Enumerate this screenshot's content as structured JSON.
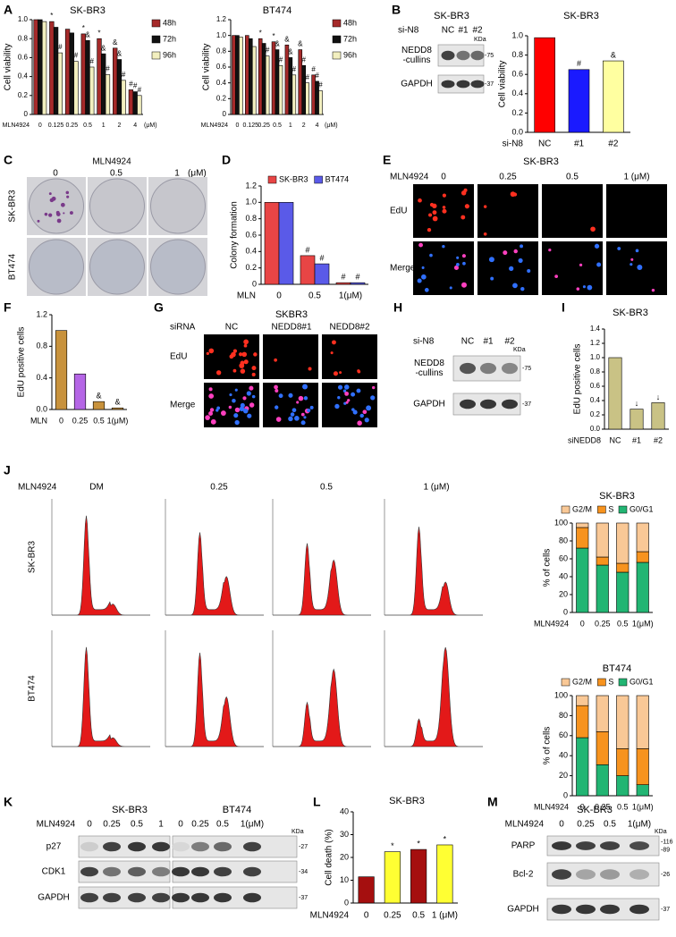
{
  "panel_labels": [
    "A",
    "B",
    "C",
    "D",
    "E",
    "F",
    "G",
    "H",
    "I",
    "J",
    "K",
    "L",
    "M"
  ],
  "chart_data": [
    {
      "type": "bar",
      "title": "SK-BR3",
      "ylabel": "Cell viability",
      "x_label": "MLN4924",
      "x_unit": "(μM)",
      "categories": [
        "0",
        "0.125",
        "0.25",
        "0.5",
        "1",
        "2",
        "4"
      ],
      "series": [
        {
          "name": "48h",
          "color": "#a52a2a",
          "values": [
            1.0,
            0.98,
            0.9,
            0.85,
            0.8,
            0.7,
            0.26
          ],
          "annotations": [
            null,
            "*",
            null,
            "*",
            "*",
            "&",
            "#"
          ]
        },
        {
          "name": "72h",
          "color": "#111111",
          "values": [
            1.0,
            0.92,
            0.86,
            0.78,
            0.64,
            0.58,
            0.24
          ],
          "annotations": [
            null,
            null,
            null,
            "&",
            "&",
            "&",
            "#"
          ]
        },
        {
          "name": "96h",
          "color": "#f2efbf",
          "values": [
            0.98,
            0.65,
            0.56,
            0.5,
            0.42,
            0.36,
            0.2
          ],
          "annotations": [
            null,
            "#",
            "#",
            "#",
            "#",
            "#",
            "#"
          ]
        }
      ],
      "ylim": [
        0,
        1.0
      ],
      "yticks": [
        0,
        0.2,
        0.4,
        0.6,
        0.8,
        {
          "value": 1,
          "label": "1.0"
        }
      ],
      "legend": "right"
    },
    {
      "type": "bar",
      "title": "BT474",
      "ylabel": "Cell viability",
      "x_label": "MLN4924",
      "x_unit": "(μM)",
      "categories": [
        "0",
        "0.125",
        "0.25",
        "0.5",
        "1",
        "2",
        "4"
      ],
      "series": [
        {
          "name": "48h",
          "color": "#a52a2a",
          "values": [
            1.0,
            1.0,
            0.96,
            0.92,
            0.88,
            0.82,
            0.5
          ],
          "annotations": [
            null,
            null,
            "*",
            "*",
            "&",
            "&",
            "#"
          ]
        },
        {
          "name": "72h",
          "color": "#111111",
          "values": [
            1.0,
            0.96,
            0.9,
            0.82,
            0.72,
            0.62,
            0.42
          ],
          "annotations": [
            null,
            null,
            null,
            "&",
            "&",
            "#",
            "#"
          ]
        },
        {
          "name": "96h",
          "color": "#f2efbf",
          "values": [
            0.98,
            0.86,
            0.74,
            0.62,
            0.5,
            0.4,
            0.3
          ],
          "annotations": [
            null,
            null,
            "#",
            "#",
            "#",
            "#",
            "#"
          ]
        }
      ],
      "ylim": [
        0,
        1.2
      ],
      "yticks": [
        0,
        0.2,
        0.4,
        0.6,
        0.8,
        {
          "value": 1,
          "label": "1.0"
        },
        1.2
      ],
      "legend": "right"
    },
    {
      "type": "bar",
      "title": "SK-BR3",
      "ylabel": "Cell viability",
      "x_label": "si-N8",
      "categories": [
        "NC",
        "#1",
        "#2"
      ],
      "values": [
        0.98,
        0.65,
        0.74
      ],
      "colors": [
        "#ff0000",
        "#1a1aff",
        "#ffffa0"
      ],
      "annotations": [
        null,
        "#",
        "&"
      ],
      "ylim": [
        0,
        1.0
      ],
      "yticks": [
        {
          "value": 0,
          "label": "0.0"
        },
        0.2,
        0.4,
        0.6,
        0.8,
        {
          "value": 1,
          "label": "1.0"
        }
      ]
    },
    {
      "type": "bar",
      "ylabel": "Colony formation",
      "x_label": "MLN",
      "categories": [
        "0",
        "0.5",
        "1(μM)"
      ],
      "series": [
        {
          "name": "SK-BR3",
          "color": "#e84545",
          "values": [
            1.0,
            0.35,
            0.02
          ],
          "annotations": [
            null,
            "#",
            "#"
          ]
        },
        {
          "name": "BT474",
          "color": "#5a5ae8",
          "values": [
            1.0,
            0.25,
            0.02
          ],
          "annotations": [
            null,
            "#",
            "#"
          ]
        }
      ],
      "ylim": [
        0,
        1.2
      ],
      "yticks": [
        0,
        0.2,
        0.4,
        0.6,
        0.8,
        {
          "value": 1,
          "label": "1.0"
        },
        1.2
      ],
      "legend": "top"
    },
    {
      "type": "bar",
      "ylabel": "EdU positive cells",
      "x_label": "MLN",
      "categories": [
        "0",
        "0.25",
        "0.5",
        "1(μM)"
      ],
      "values": [
        1.0,
        0.45,
        0.1,
        0.02
      ],
      "colors": [
        "#c8923c",
        "#b566e6",
        "#c8923c",
        "#c8923c"
      ],
      "annotations": [
        null,
        null,
        "&",
        "&"
      ],
      "ylim": [
        0,
        1.2
      ],
      "yticks": [
        {
          "value": 0,
          "label": "0.0"
        },
        0.4,
        0.8,
        1.2
      ]
    },
    {
      "type": "bar",
      "title": "SK-BR3",
      "ylabel": "EdU positive cells",
      "x_label": "siNEDD8",
      "categories": [
        "NC",
        "#1",
        "#2"
      ],
      "values": [
        1.0,
        0.28,
        0.37
      ],
      "color": "#c9c285",
      "annotations": [
        null,
        "↓",
        "↓"
      ],
      "ylim": [
        0,
        1.4
      ],
      "yticks": [
        {
          "value": 0,
          "label": "0.0"
        },
        0.2,
        0.4,
        0.6,
        0.8,
        {
          "value": 1,
          "label": "1.0"
        },
        1.2,
        1.4
      ]
    },
    {
      "type": "bar",
      "stacked": true,
      "title": "SK-BR3",
      "ylabel": "% of cells",
      "x_label": "MLN4924",
      "categories": [
        "0",
        "0.25",
        "0.5",
        "1(μM)"
      ],
      "series": [
        {
          "name": "G2/M",
          "color": "#f9c896",
          "values": [
            5,
            38,
            45,
            32
          ]
        },
        {
          "name": "S",
          "color": "#f7931e",
          "values": [
            23,
            9,
            10,
            12
          ]
        },
        {
          "name": "G0/G1",
          "color": "#22b573",
          "values": [
            72,
            53,
            45,
            56
          ]
        }
      ],
      "ylim": [
        0,
        100
      ],
      "yticks": [
        0,
        20,
        40,
        60,
        80,
        100
      ],
      "legend": "top"
    },
    {
      "type": "bar",
      "stacked": true,
      "title": "BT474",
      "ylabel": "% of cells",
      "x_label": "MLN4924",
      "categories": [
        "0",
        "0.25",
        "0.5",
        "1(μM)"
      ],
      "series": [
        {
          "name": "G2/M",
          "color": "#f9c896",
          "values": [
            10,
            36,
            53,
            53
          ]
        },
        {
          "name": "S",
          "color": "#f7931e",
          "values": [
            32,
            33,
            27,
            36
          ]
        },
        {
          "name": "G0/G1",
          "color": "#22b573",
          "values": [
            58,
            31,
            20,
            11
          ]
        }
      ],
      "ylim": [
        0,
        100
      ],
      "yticks": [
        0,
        20,
        40,
        60,
        80,
        100
      ],
      "legend": "top"
    },
    {
      "type": "bar",
      "title": "SK-BR3",
      "ylabel": "Cell death (%)",
      "x_label": "MLN4924",
      "categories": [
        "0",
        "0.25",
        "0.5",
        "1 (μM)"
      ],
      "values": [
        11.5,
        22.5,
        23.5,
        25.5
      ],
      "colors": [
        "#a50f0f",
        "#ffff33",
        "#a50f0f",
        "#ffff33"
      ],
      "annotations": [
        null,
        "*",
        "*",
        "*"
      ],
      "ylim": [
        0,
        40
      ],
      "yticks": [
        0,
        10,
        20,
        30,
        40
      ]
    }
  ],
  "blots": {
    "B": {
      "title": "SK-BR3",
      "lane_prefix": "si-N8",
      "lanes": [
        "NC",
        "#1",
        "#2"
      ],
      "unit": "KDa",
      "rows": [
        {
          "label": [
            "NEDD8",
            "-cullins"
          ],
          "markers": [
            "-75"
          ]
        },
        {
          "label": [
            "GAPDH"
          ],
          "markers": [
            "-37"
          ]
        }
      ]
    },
    "H": {
      "lane_prefix": "si-N8",
      "lanes": [
        "NC",
        "#1",
        "#2"
      ],
      "unit": "KDa",
      "rows": [
        {
          "label": [
            "NEDD8",
            "-cullins"
          ],
          "markers": [
            "-75"
          ]
        },
        {
          "label": [
            "GAPDH"
          ],
          "markers": [
            "-37"
          ]
        }
      ]
    },
    "K": {
      "lane_prefix": "MLN4924",
      "groups": [
        {
          "name": "SK-BR3",
          "lanes": [
            "0",
            "0.25",
            "0.5",
            "1"
          ]
        },
        {
          "name": "BT474",
          "lanes": [
            "0",
            "0.25",
            "0.5",
            "1(μM)"
          ]
        }
      ],
      "unit": "KDa",
      "rows": [
        {
          "label": [
            "p27"
          ],
          "markers": [
            "-27"
          ]
        },
        {
          "label": [
            "CDK1"
          ],
          "markers": [
            "-34"
          ]
        },
        {
          "label": [
            "GAPDH"
          ],
          "markers": [
            "-37"
          ]
        }
      ]
    },
    "M": {
      "title": "SK-BR3",
      "lane_prefix": "MLN4924",
      "lanes": [
        "0",
        "0.25",
        "0.5",
        "1(μM)"
      ],
      "unit": "KDa",
      "rows": [
        {
          "label": [
            "PARP"
          ],
          "markers": [
            "-116",
            "-89"
          ]
        },
        {
          "label": [
            "Bcl-2"
          ],
          "markers": [
            "-26"
          ]
        },
        {
          "label": [
            "GAPDH"
          ],
          "markers": [
            "-37"
          ]
        }
      ]
    }
  },
  "images": {
    "C": {
      "prefix": "MLN4924",
      "columns": [
        "0",
        "0.5",
        "1"
      ],
      "unit": "(μM)",
      "rows": [
        "SK-BR3",
        "BT474"
      ]
    },
    "E": {
      "title": "SK-BR3",
      "prefix": "MLN4924",
      "columns": [
        "0",
        "0.25",
        "0.5",
        "1 (μM)"
      ],
      "rows": [
        "EdU",
        "Merge"
      ]
    },
    "G": {
      "title": "SKBR3",
      "prefix": "siRNA",
      "columns": [
        "NC",
        "NEDD8#1",
        "NEDD8#2"
      ],
      "rows": [
        "EdU",
        "Merge"
      ]
    },
    "J": {
      "prefix": "MLN4924",
      "columns": [
        "DM",
        "0.25",
        "0.5",
        "1  (μM)"
      ],
      "rows": [
        "SK-BR3",
        "BT474"
      ]
    }
  }
}
